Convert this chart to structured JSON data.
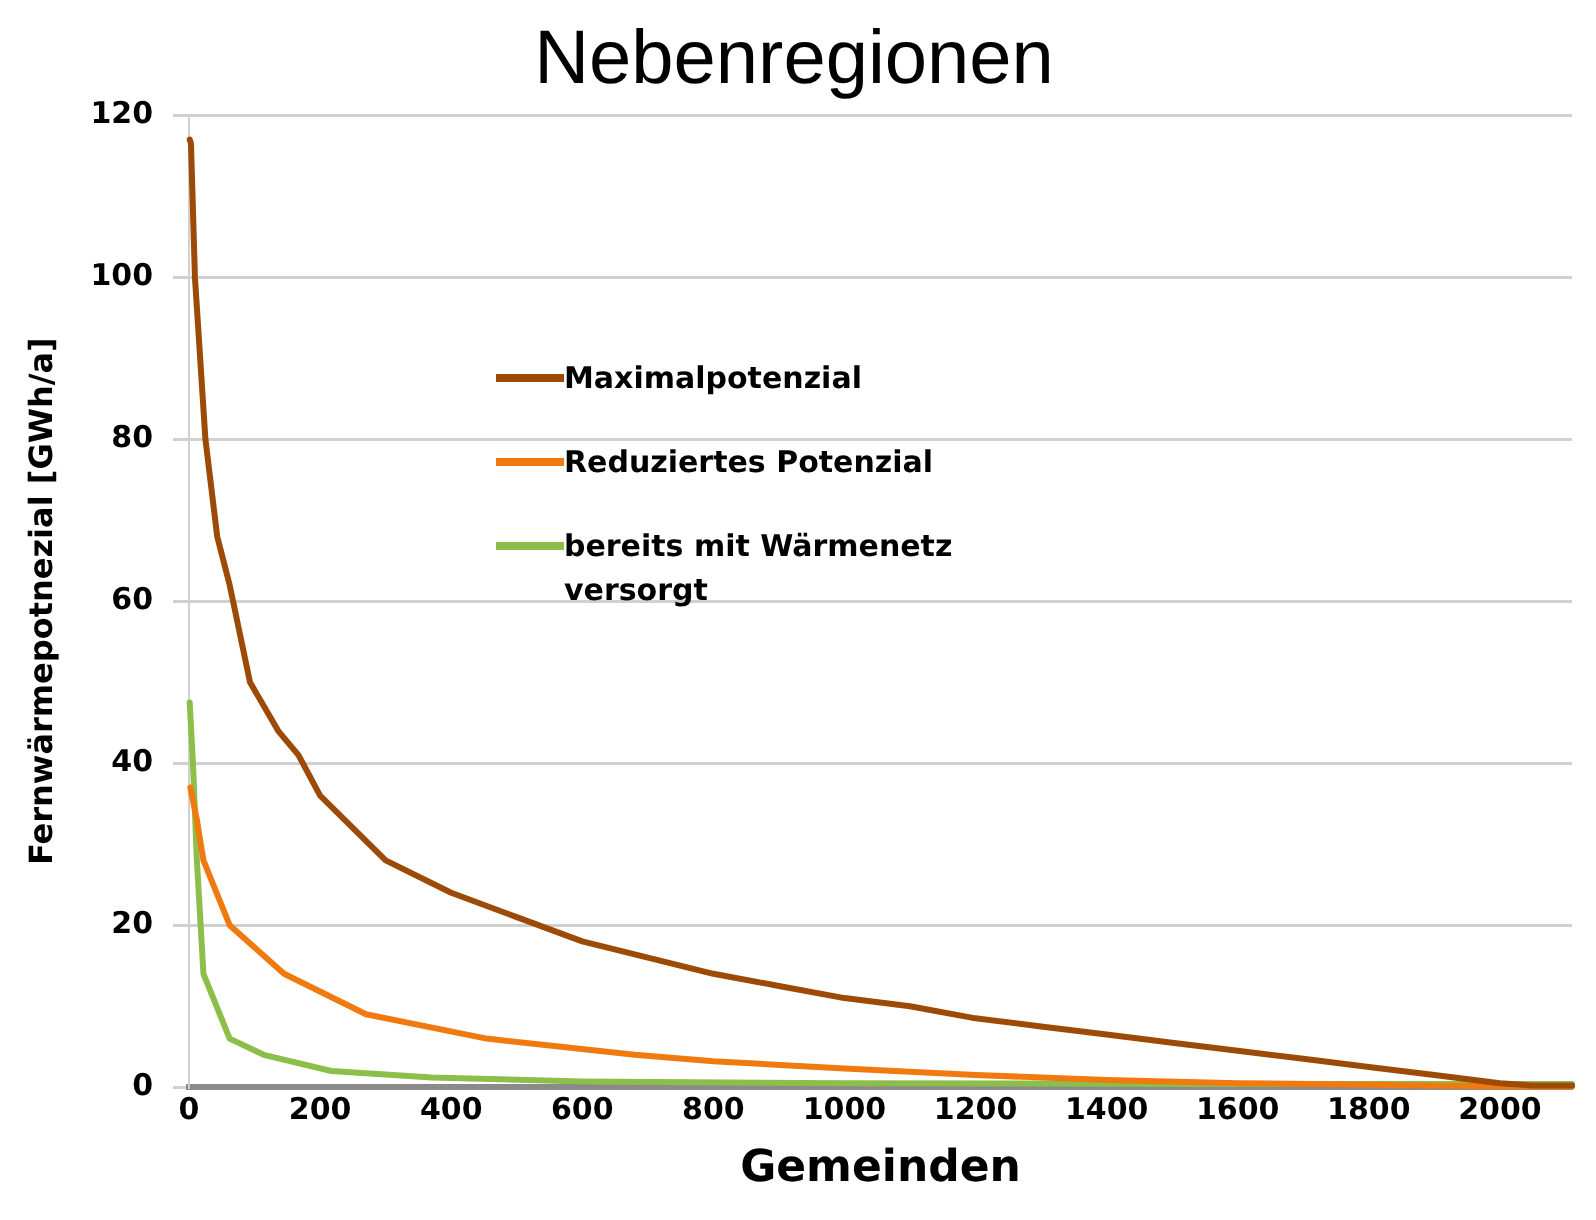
{
  "chart_data": {
    "type": "line",
    "title": "Nebenregionen",
    "xlabel": "Gemeinden",
    "ylabel": "Fernwärmepotnezial [GWh/a]",
    "xlim": [
      0,
      2110
    ],
    "xticks": [
      0,
      200,
      400,
      600,
      800,
      1000,
      1200,
      1400,
      1600,
      1800,
      2000
    ],
    "ylim": [
      0,
      120
    ],
    "yticks": [
      0,
      20,
      40,
      60,
      80,
      100,
      120
    ],
    "grid": "y",
    "legend": "top",
    "marker": "none",
    "line_style": "solid",
    "series": [
      {
        "name": "Maximalpotenzial",
        "color": "#9c4a06",
        "x": [
          1,
          3,
          9,
          25,
          43,
          62,
          93,
          136,
          167,
          200,
          300,
          400,
          500,
          600,
          700,
          800,
          900,
          1000,
          1100,
          1200,
          1300,
          1400,
          1500,
          1600,
          1700,
          1800,
          1900,
          2000,
          2050,
          2110
        ],
        "values": [
          117,
          116.5,
          100,
          80,
          68,
          62,
          50,
          44,
          41,
          36,
          28,
          24,
          21,
          18,
          16,
          14,
          12.5,
          11,
          10,
          8.5,
          7.5,
          6.5,
          5.5,
          4.5,
          3.5,
          2.5,
          1.5,
          0.5,
          0.2,
          0.2
        ]
      },
      {
        "name": "Reduziertes Potenzial",
        "color": "#f07a10",
        "x": [
          2,
          12,
          22,
          62,
          145,
          270,
          454,
          680,
          800,
          1000,
          1200,
          1400,
          1600,
          1800,
          2000,
          2110
        ],
        "values": [
          37,
          33,
          28,
          20,
          14,
          9,
          6,
          4,
          3.2,
          2.3,
          1.5,
          0.9,
          0.5,
          0.3,
          0.1,
          0.1
        ]
      },
      {
        "name": "bereits mit Wärmenetz versorgt",
        "color": "#8cbf4a",
        "x": [
          1,
          6,
          12,
          22,
          62,
          114,
          217,
          370,
          600,
          1000,
          1500,
          2110
        ],
        "values": [
          47.5,
          40,
          28,
          14,
          6,
          4,
          2,
          1.2,
          0.7,
          0.5,
          0.4,
          0.4
        ]
      }
    ]
  }
}
